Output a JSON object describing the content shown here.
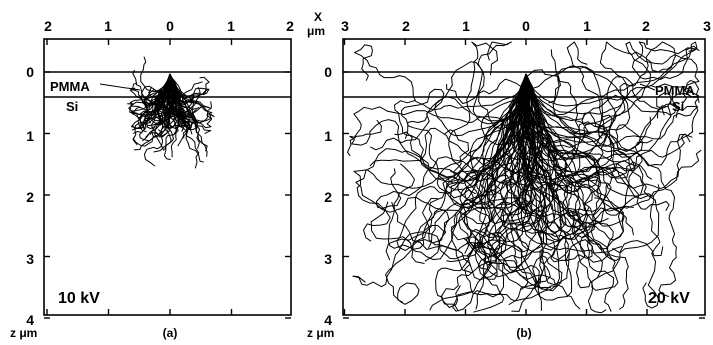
{
  "figure": {
    "top_axis_unit_x": "X",
    "top_axis_unit_um": "μm",
    "depth_axis_label": "z μm"
  },
  "panels": [
    {
      "id": "a",
      "caption": "(a)",
      "voltage": "10 kV",
      "x_ticks": [
        "2",
        "1",
        "0",
        "1",
        "2"
      ],
      "z_ticks": [
        "0",
        "1",
        "2",
        "3",
        "4"
      ],
      "layer_top": "PMMA",
      "layer_bottom": "Si",
      "x_half_range_um": 2,
      "z_range_um": [
        -0.5,
        4
      ],
      "interface_depths_um": [
        0,
        0.4
      ],
      "trajectory_spread_um": 0.6,
      "max_depth_um": 1.2
    },
    {
      "id": "b",
      "caption": "(b)",
      "voltage": "20 kV",
      "x_ticks": [
        "3",
        "2",
        "1",
        "0",
        "1",
        "2",
        "3"
      ],
      "z_ticks": [
        "0",
        "1",
        "2",
        "3",
        "4"
      ],
      "layer_top": "PMMA",
      "layer_bottom": "Si",
      "x_half_range_um": 3,
      "z_range_um": [
        -0.5,
        4
      ],
      "interface_depths_um": [
        0,
        0.4
      ],
      "trajectory_spread_um": 2.8,
      "max_depth_um": 4
    }
  ]
}
